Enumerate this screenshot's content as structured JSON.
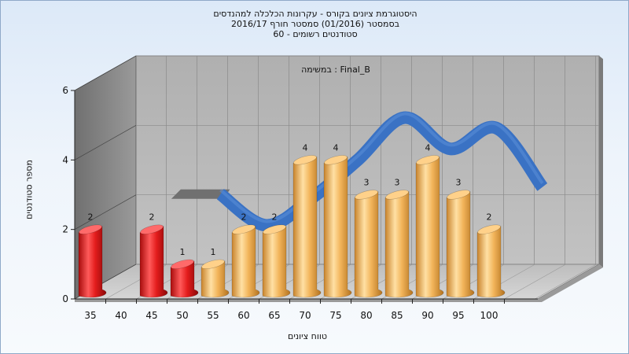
{
  "chart_data": {
    "type": "bar",
    "title_lines": [
      "היסטוגרמת ציונים בקורס - עקרונות הכלכלה למהנדסים",
      "בסמסטר  (01/2016)  סמסטר חורף 2016/17",
      "סטודנטים רשומים - 60"
    ],
    "legend_text": "Final_B : במשימה",
    "xlabel": "טווח ציונים",
    "ylabel": "מספר סטודנטים",
    "ylim": [
      0,
      6
    ],
    "y_ticks": [
      "0",
      "2",
      "4",
      "6"
    ],
    "categories": [
      "35",
      "40",
      "45",
      "50",
      "55",
      "60",
      "65",
      "70",
      "75",
      "80",
      "85",
      "90",
      "95",
      "100"
    ],
    "bars": [
      {
        "x": "35",
        "value": 2,
        "label": "2",
        "color": "#e01818"
      },
      {
        "x": "45",
        "value": 2,
        "label": "2",
        "color": "#e01818"
      },
      {
        "x": "50",
        "value": 1,
        "label": "1",
        "color": "#e01818"
      },
      {
        "x": "55",
        "value": 1,
        "label": "1",
        "color": "#f0b050"
      },
      {
        "x": "60",
        "value": 2,
        "label": "2",
        "color": "#f0b050"
      },
      {
        "x": "65",
        "value": 2,
        "label": "2",
        "color": "#f0b050"
      },
      {
        "x": "70",
        "value": 4,
        "label": "4",
        "color": "#f0b050"
      },
      {
        "x": "75",
        "value": 4,
        "label": "4",
        "color": "#f0b050"
      },
      {
        "x": "80",
        "value": 3,
        "label": "3",
        "color": "#f0b050"
      },
      {
        "x": "85",
        "value": 3,
        "label": "3",
        "color": "#f0b050"
      },
      {
        "x": "90",
        "value": 4,
        "label": "4",
        "color": "#f0b050"
      },
      {
        "x": "95",
        "value": 3,
        "label": "3",
        "color": "#f0b050"
      },
      {
        "x": "100",
        "value": 2,
        "label": "2",
        "color": "#f0b050"
      }
    ],
    "trend_line": {
      "color": "#3a72c4",
      "shadow_color": "#707070",
      "x": [
        "42.5",
        "50",
        "57.5",
        "65",
        "72.5",
        "80",
        "87.5",
        "95",
        "102.5"
      ],
      "values": [
        2.4,
        2.4,
        1.5,
        2.3,
        3.4,
        4.6,
        3.7,
        4.3,
        2.6
      ]
    },
    "grid": true
  }
}
